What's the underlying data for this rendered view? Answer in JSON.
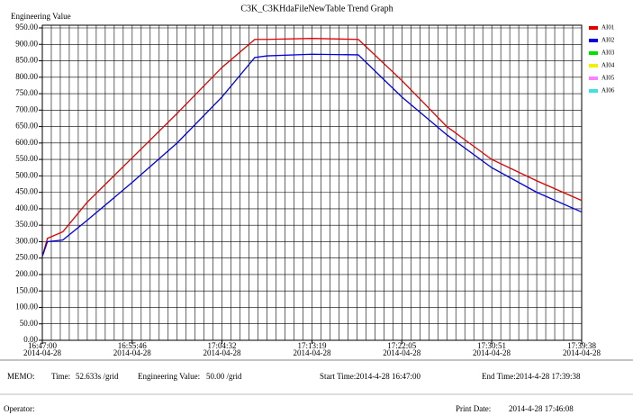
{
  "chart_data": {
    "type": "line",
    "title": "C3K_C3KHdaFileNewTable Trend Graph",
    "y_label": "Engineering Value",
    "x": [
      "16:47:00",
      "16:47:30",
      "16:49:00",
      "16:51:23",
      "16:55:46",
      "17:00:09",
      "17:04:32",
      "17:07:44",
      "17:08:56",
      "17:13:19",
      "17:17:50",
      "17:22:05",
      "17:26:28",
      "17:30:51",
      "17:35:15",
      "17:39:38"
    ],
    "series": [
      {
        "name": "AI01",
        "color": "#e00000",
        "values": [
          255,
          310,
          330,
          420,
          555,
          690,
          830,
          915,
          915,
          918,
          915,
          790,
          650,
          550,
          485,
          425
        ]
      },
      {
        "name": "AI02",
        "color": "#0000e0",
        "values": [
          255,
          300,
          305,
          365,
          480,
          600,
          740,
          860,
          865,
          870,
          868,
          740,
          625,
          525,
          450,
          390
        ]
      },
      {
        "name": "AI03",
        "color": "#00e000",
        "values": [
          null,
          null,
          null,
          null,
          null,
          null,
          null,
          null,
          null,
          null,
          null,
          null,
          null,
          null,
          null,
          null
        ]
      },
      {
        "name": "AI04",
        "color": "#f0f000",
        "values": [
          null,
          null,
          null,
          null,
          null,
          null,
          null,
          null,
          null,
          null,
          null,
          null,
          null,
          null,
          null,
          null
        ]
      },
      {
        "name": "AI05",
        "color": "#ff80ff",
        "values": [
          null,
          null,
          null,
          null,
          null,
          null,
          null,
          null,
          null,
          null,
          null,
          null,
          null,
          null,
          null,
          null
        ]
      },
      {
        "name": "AI06",
        "color": "#40e0e0",
        "values": [
          null,
          null,
          null,
          null,
          null,
          null,
          null,
          null,
          null,
          null,
          null,
          null,
          null,
          null,
          null,
          null
        ]
      }
    ],
    "xlim": [
      "16:47:00",
      "17:39:38"
    ],
    "xticks": [
      "16:47:00",
      "16:55:46",
      "17:04:32",
      "17:13:19",
      "17:22:05",
      "17:30:51",
      "17:39:38"
    ],
    "xtick_date": "2014-04-28",
    "ylim": [
      0,
      950
    ],
    "yticks": [
      {
        "value": 0,
        "label": "0.00"
      },
      {
        "value": 50,
        "label": "50.00"
      },
      {
        "value": 100,
        "label": "100.00"
      },
      {
        "value": 150,
        "label": "150.00"
      },
      {
        "value": 200,
        "label": "200.00"
      },
      {
        "value": 250,
        "label": "250.00"
      },
      {
        "value": 300,
        "label": "300.00"
      },
      {
        "value": 350,
        "label": "350.00"
      },
      {
        "value": 400,
        "label": "400.00"
      },
      {
        "value": 450,
        "label": "450.00"
      },
      {
        "value": 500,
        "label": "500.00"
      },
      {
        "value": 550,
        "label": "550.00"
      },
      {
        "value": 600,
        "label": "600.00"
      },
      {
        "value": 650,
        "label": "650.00"
      },
      {
        "value": 700,
        "label": "700.00"
      },
      {
        "value": 750,
        "label": "750.00"
      },
      {
        "value": 800,
        "label": "800.00"
      },
      {
        "value": 850,
        "label": "850.00"
      },
      {
        "value": 900,
        "label": "900.00"
      },
      {
        "value": 950,
        "label": "950.00"
      }
    ],
    "x_grid_step": {
      "value": 52.633,
      "label": "52.633s /grid"
    },
    "y_grid_step": {
      "value": 50,
      "label": "50.00 /grid"
    },
    "grid": true
  },
  "footer": {
    "memo": "MEMO:",
    "time_label": "Time:",
    "value_label": "Engineering Value:",
    "start": "Start Time:2014-4-28 16:47:00",
    "end": "End Time:2014-4-28 17:39:38",
    "operator": "Operator:",
    "print_label": "Print Date:",
    "print_date": "2014-4-28 17:46:08"
  }
}
